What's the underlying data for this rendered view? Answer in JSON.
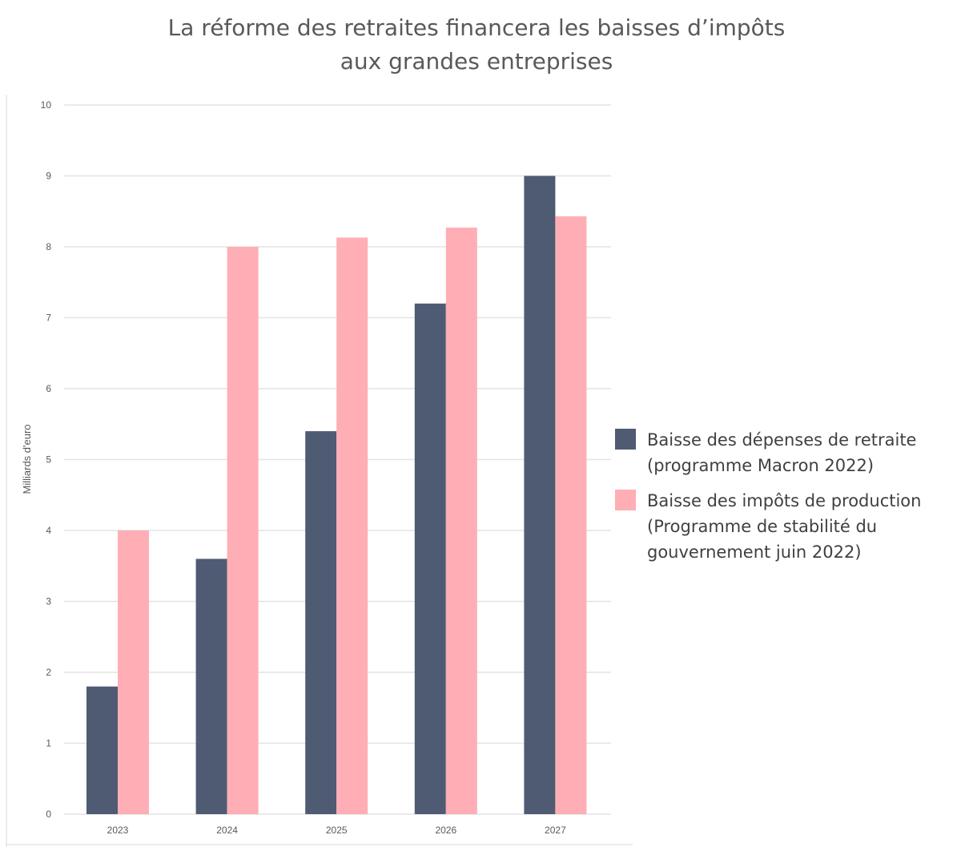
{
  "chart_data": {
    "type": "bar",
    "title": [
      "La réforme des retraites financera les baisses d’impôts",
      "aux grandes entreprises"
    ],
    "ylabel": "Milliards d'euro",
    "xlabel": "",
    "categories": [
      "2023",
      "2024",
      "2025",
      "2026",
      "2027"
    ],
    "ylim": [
      0,
      10
    ],
    "yticks": [
      "0",
      "1",
      "2",
      "3",
      "4",
      "5",
      "6",
      "7",
      "8",
      "9",
      "10"
    ],
    "grid": true,
    "legend_position": "right",
    "series": [
      {
        "name": "Baisse des dépenses de retraite (programme Macron 2022)",
        "name_lines": [
          "Baisse des dépenses de retraite",
          "(programme Macron 2022)"
        ],
        "color": "#4f5b73",
        "values": [
          1.8,
          3.6,
          5.4,
          7.2,
          9.0
        ]
      },
      {
        "name": "Baisse des impôts de production (Programme de stabilité du gouvernement juin 2022)",
        "name_lines": [
          "Baisse des impôts de production",
          "(Programme de stabilité du",
          "gouvernement juin 2022)"
        ],
        "color": "#feaeb4",
        "values": [
          4.0,
          8.0,
          8.13,
          8.27,
          8.43
        ]
      }
    ]
  }
}
